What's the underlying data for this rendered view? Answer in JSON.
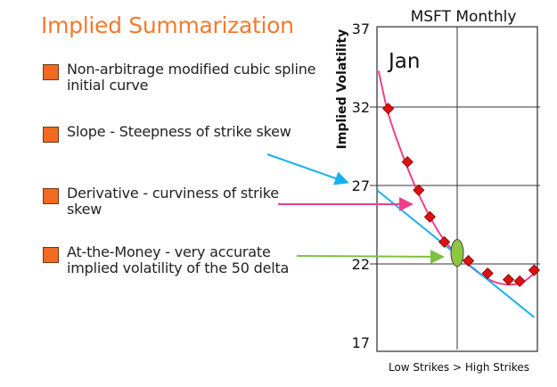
{
  "title": "Implied Summarization",
  "bullets": [
    {
      "text": "Non-arbitrage modified cubic spline initial curve"
    },
    {
      "text": "Slope - Steepness of strike skew",
      "arrow_color": "#1ab0f0"
    },
    {
      "text": "Derivative - curviness of strike skew",
      "arrow_color": "#f0408a"
    },
    {
      "text": "At-the-Money - very accurate implied volatility of the 50 delta",
      "arrow_color": "#7dc242"
    }
  ],
  "colors": {
    "accent": "#f47a2e",
    "bullet": "#f26a21",
    "curve": "#f0408a",
    "slope": "#1ab0f0",
    "atm": "#8dc63f",
    "points": "#e01010"
  },
  "chart_data": {
    "type": "scatter",
    "title": "MSFT Monthly",
    "annotation": "Jan",
    "ylabel": "Implied Volatility",
    "xlabel": "Low Strikes > High Strikes",
    "ylim": [
      17,
      37
    ],
    "xlim": [
      0,
      100
    ],
    "yticks": [
      "37",
      "32",
      "27",
      "22",
      "17"
    ],
    "ytick_values": [
      37,
      32,
      27,
      22,
      17
    ],
    "grid": true,
    "points": [
      {
        "x": 7,
        "y": 31.9
      },
      {
        "x": 19,
        "y": 28.5
      },
      {
        "x": 26,
        "y": 26.7
      },
      {
        "x": 33,
        "y": 25.0
      },
      {
        "x": 42,
        "y": 23.4
      },
      {
        "x": 57,
        "y": 22.2
      },
      {
        "x": 69,
        "y": 21.4
      },
      {
        "x": 82,
        "y": 21.0
      },
      {
        "x": 89,
        "y": 20.9
      },
      {
        "x": 98,
        "y": 21.6
      }
    ],
    "curve": [
      {
        "x": 1,
        "y": 34.3
      },
      {
        "x": 7,
        "y": 31.6
      },
      {
        "x": 15,
        "y": 29.2
      },
      {
        "x": 24,
        "y": 26.9
      },
      {
        "x": 33,
        "y": 25.0
      },
      {
        "x": 42,
        "y": 23.5
      },
      {
        "x": 50,
        "y": 22.6
      },
      {
        "x": 60,
        "y": 21.7
      },
      {
        "x": 70,
        "y": 21.0
      },
      {
        "x": 80,
        "y": 20.7
      },
      {
        "x": 90,
        "y": 20.8
      },
      {
        "x": 98,
        "y": 21.4
      }
    ],
    "slope_line": [
      {
        "x": 0,
        "y": 26.7
      },
      {
        "x": 98,
        "y": 18.6
      }
    ],
    "atm_point": {
      "x": 50,
      "y": 22.7
    }
  }
}
